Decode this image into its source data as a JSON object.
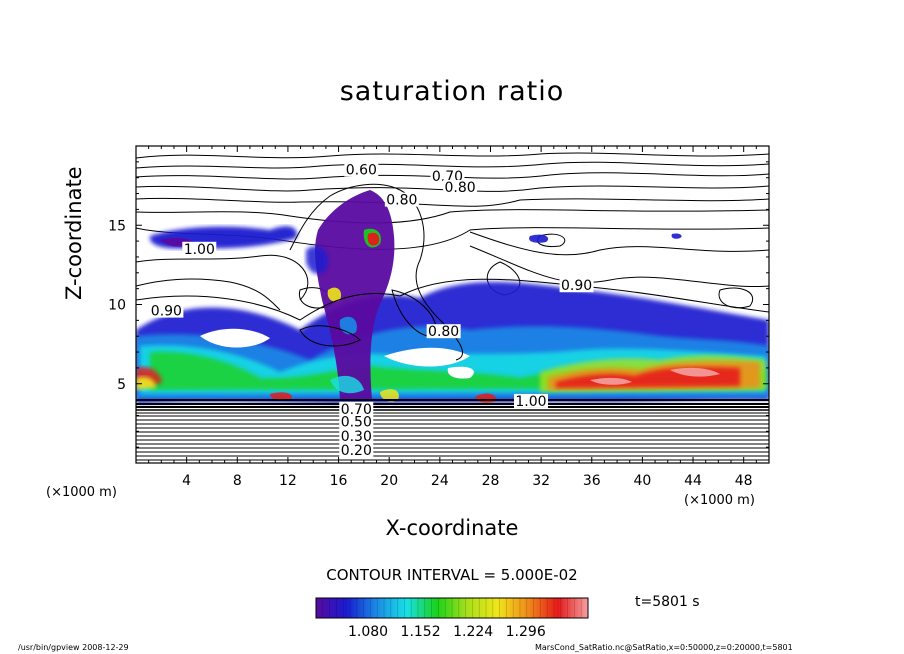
{
  "chart_data": {
    "type": "heatmap",
    "title": "saturation ratio",
    "xlabel": "X-coordinate",
    "ylabel": "Z-coordinate",
    "x_unit": "(×1000 m)",
    "y_unit": "(×1000 m)",
    "xlim": [
      0,
      50
    ],
    "ylim": [
      0,
      20
    ],
    "x_ticks": [
      4,
      8,
      12,
      16,
      20,
      24,
      28,
      32,
      36,
      40,
      44,
      48
    ],
    "y_ticks": [
      5,
      10,
      15
    ],
    "contour_interval_text": "CONTOUR INTERVAL = 5.000E-02",
    "colorbar": {
      "tick_labels": [
        "1.080",
        "1.152",
        "1.224",
        "1.296"
      ],
      "colors": [
        "#5a0aa0",
        "#1a1ad0",
        "#1a8ae6",
        "#19e0e6",
        "#1ad21a",
        "#a8e01a",
        "#f0e61a",
        "#f08c1a",
        "#e61a1a",
        "#f5a0a0"
      ]
    },
    "contour_labels": [
      {
        "text": "0.60",
        "x": 17.8,
        "z": 18.2
      },
      {
        "text": "0.70",
        "x": 24.6,
        "z": 17.8
      },
      {
        "text": "0.80",
        "x": 25.6,
        "z": 17.1
      },
      {
        "text": "0.80",
        "x": 21.0,
        "z": 16.3
      },
      {
        "text": "1.00",
        "x": 5.0,
        "z": 13.2
      },
      {
        "text": "0.90",
        "x": 34.8,
        "z": 10.9
      },
      {
        "text": "0.90",
        "x": 2.4,
        "z": 9.3
      },
      {
        "text": "0.80",
        "x": 24.3,
        "z": 8.0
      },
      {
        "text": "1.00",
        "x": 31.2,
        "z": 3.6
      },
      {
        "text": "0.70",
        "x": 17.4,
        "z": 3.1
      },
      {
        "text": "0.50",
        "x": 17.4,
        "z": 2.3
      },
      {
        "text": "0.30",
        "x": 17.4,
        "z": 1.4
      },
      {
        "text": "0.20",
        "x": 17.4,
        "z": 0.5
      }
    ],
    "time_label": "t=5801 s"
  },
  "footer": {
    "left": "/usr/bin/gpview   2008-12-29",
    "right": "MarsCond_SatRatio.nc@SatRatio,x=0:50000,z=0:20000,t=5801"
  }
}
